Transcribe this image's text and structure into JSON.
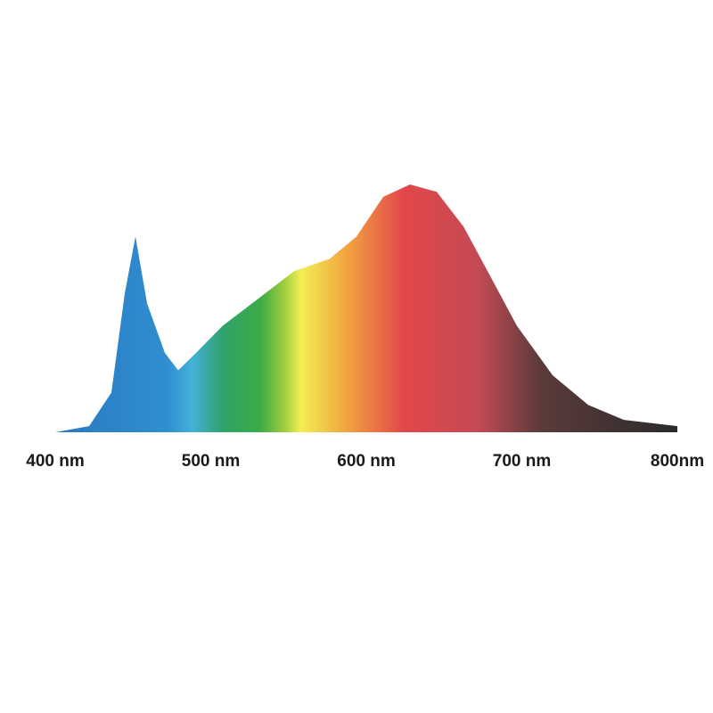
{
  "chart_data": {
    "type": "area",
    "x": [
      400,
      421.8,
      436.1,
      444.7,
      451.6,
      459.0,
      470.5,
      479.1,
      490.5,
      507.7,
      530.7,
      553.6,
      576.5,
      593.7,
      610.9,
      628.1,
      645.3,
      662.5,
      679.7,
      696.8,
      719.8,
      742.7,
      765.6,
      800
    ],
    "values": [
      0,
      2.5,
      16,
      56,
      79,
      52,
      32,
      25,
      32,
      43,
      54,
      65,
      70,
      79,
      95,
      100,
      97,
      83,
      63,
      43,
      23,
      11,
      5,
      2.5
    ],
    "xlim": [
      400,
      800
    ],
    "ylim": [
      0,
      100
    ],
    "xticks": [
      {
        "value": 400,
        "label": "400 nm"
      },
      {
        "value": 500,
        "label": "500 nm"
      },
      {
        "value": 600,
        "label": "600 nm"
      },
      {
        "value": 700,
        "label": "700 nm"
      },
      {
        "value": 800,
        "label": "800nm"
      }
    ],
    "grid": false
  }
}
